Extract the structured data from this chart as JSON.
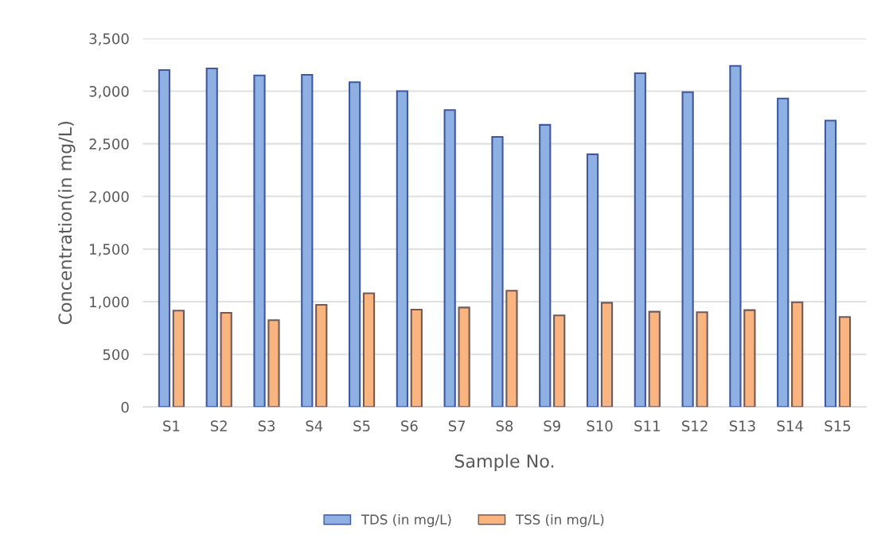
{
  "chart_data": {
    "type": "bar",
    "xlabel": "Sample No.",
    "ylabel": "Concentration(in mg/L)",
    "categories": [
      "S1",
      "S2",
      "S3",
      "S4",
      "S5",
      "S6",
      "S7",
      "S8",
      "S9",
      "S10",
      "S11",
      "S12",
      "S13",
      "S14",
      "S15"
    ],
    "series": [
      {
        "name": "TDS (in mg/L)",
        "color": "#8eb0e3",
        "values": [
          3200,
          3215,
          3150,
          3155,
          3085,
          3000,
          2820,
          2565,
          2680,
          2400,
          3170,
          2990,
          3240,
          2930,
          2720
        ]
      },
      {
        "name": "TSS (in mg/L)",
        "color": "#f9b47f",
        "values": [
          915,
          895,
          825,
          970,
          1080,
          925,
          945,
          1105,
          870,
          990,
          905,
          900,
          920,
          995,
          855
        ]
      }
    ],
    "ylim": [
      0,
      3500
    ],
    "yticks": [
      0,
      500,
      {
        "value": 1000,
        "label": "1,000"
      },
      {
        "value": 1500,
        "label": "1,500"
      },
      {
        "value": 2000,
        "label": "2,000"
      },
      {
        "value": 2500,
        "label": "2,500"
      },
      {
        "value": 3000,
        "label": "3,000"
      },
      {
        "value": 3500,
        "label": "3,500"
      }
    ],
    "grid": "y",
    "legend": "bottom"
  }
}
